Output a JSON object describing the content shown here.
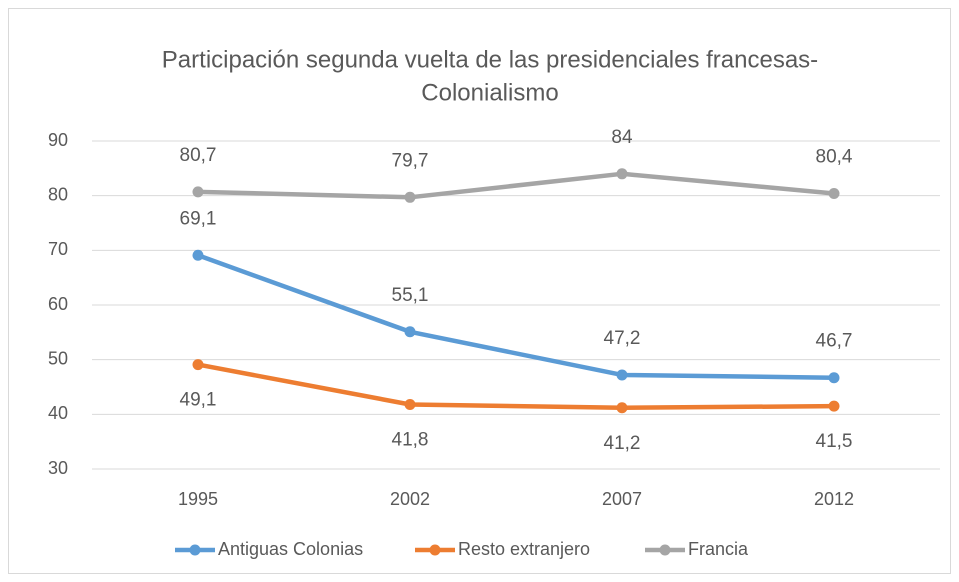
{
  "chart_data": {
    "type": "line",
    "title": [
      "Participación segunda vuelta de las presidenciales francesas-",
      "Colonialismo"
    ],
    "categories": [
      "1995",
      "2002",
      "2007",
      "2012"
    ],
    "series": [
      {
        "name": "Antiguas Colonias",
        "color": "#5b9bd5",
        "values": [
          69.1,
          55.1,
          47.2,
          46.7
        ],
        "value_labels": [
          "69,1",
          "55,1",
          "47,2",
          "46,7"
        ],
        "label_position": "above"
      },
      {
        "name": "Resto extranjero",
        "color": "#ed7d31",
        "values": [
          49.1,
          41.8,
          41.2,
          41.5
        ],
        "value_labels": [
          "49,1",
          "41,8",
          "41,2",
          "41,5"
        ],
        "label_position": "below"
      },
      {
        "name": "Francia",
        "color": "#a5a5a5",
        "values": [
          80.7,
          79.7,
          84,
          80.4
        ],
        "value_labels": [
          "80,7",
          "79,7",
          "84",
          "80,4"
        ],
        "label_position": "above"
      }
    ],
    "ylim": [
      30,
      90
    ],
    "yticks": [
      30,
      40,
      50,
      60,
      70,
      80,
      90
    ],
    "grid": true,
    "legend": "bottom"
  }
}
